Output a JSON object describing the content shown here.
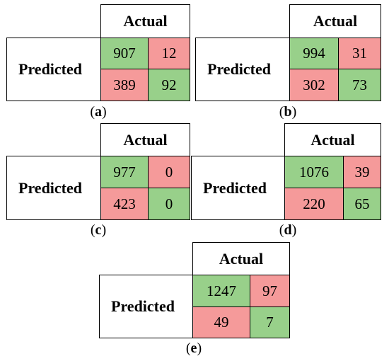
{
  "colors": {
    "correct": "#98d08a",
    "incorrect": "#f59a9a"
  },
  "matrices": [
    {
      "id": "a",
      "actual_label": "Actual",
      "predicted_label": "Predicted",
      "cells": [
        "907",
        "12",
        "389",
        "92"
      ],
      "caption": "a"
    },
    {
      "id": "b",
      "actual_label": "Actual",
      "predicted_label": "Predicted",
      "cells": [
        "994",
        "31",
        "302",
        "73"
      ],
      "caption": "b"
    },
    {
      "id": "c",
      "actual_label": "Actual",
      "predicted_label": "Predicted",
      "cells": [
        "977",
        "0",
        "423",
        "0"
      ],
      "caption": "c"
    },
    {
      "id": "d",
      "actual_label": "Actual",
      "predicted_label": "Predicted",
      "cells": [
        "1076",
        "39",
        "220",
        "65"
      ],
      "caption": "d"
    },
    {
      "id": "e",
      "actual_label": "Actual",
      "predicted_label": "Predicted",
      "cells": [
        "1247",
        "97",
        "49",
        "7"
      ],
      "caption": "e"
    }
  ]
}
